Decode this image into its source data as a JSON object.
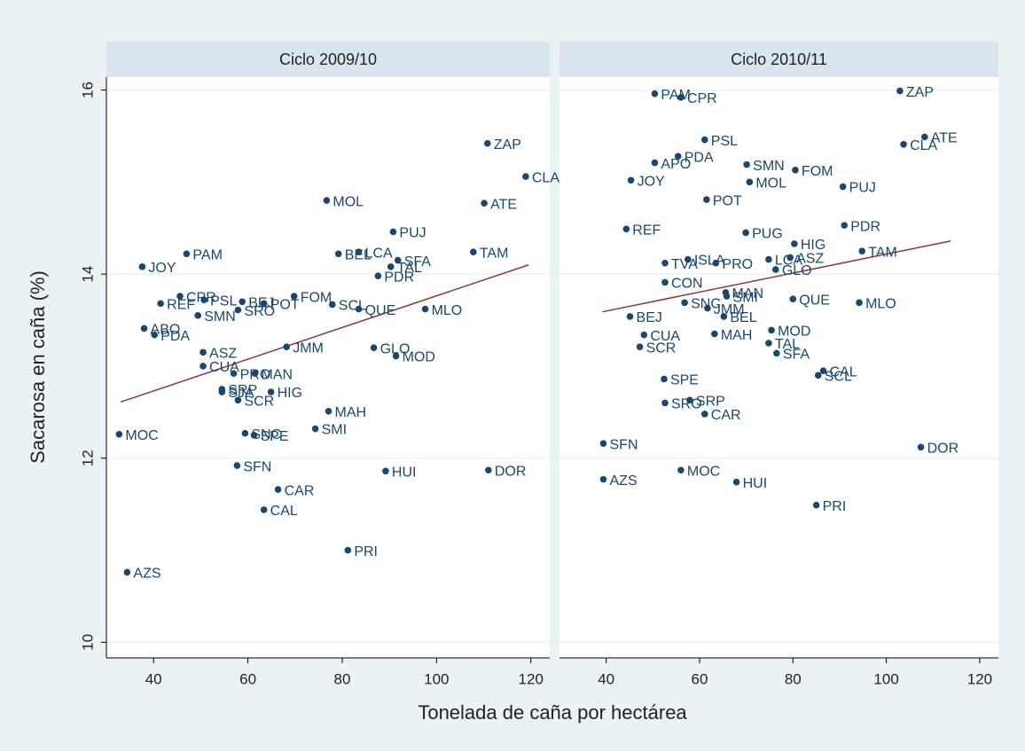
{
  "chart_data": [
    {
      "type": "scatter",
      "title": "Ciclo 2009/10",
      "x_label": "Tonelada de caña por hectárea",
      "y_label": "Sacarosa en caña (%)",
      "labels": [
        "ZAP",
        "CLA",
        "MOL",
        "ATE",
        "PUJ",
        "PAM",
        "TAM",
        "BEL",
        "LCA",
        "SFA",
        "TAL",
        "JOY",
        "PDR",
        "CPR",
        "REF",
        "PSL",
        "BEJ",
        "POT",
        "FOM",
        "SCL",
        "QUE",
        "MLO",
        "SRO",
        "SMN",
        "ABO",
        "PDA",
        "JMM",
        "GLO",
        "ASZ",
        "MOD",
        "CUA",
        "PRO",
        "MAN",
        "SRP",
        "SJA",
        "HIG",
        "SCR",
        "MOC",
        "SNC",
        "SPE",
        "MAH",
        "SMI",
        "SFN",
        "HUI",
        "DOR",
        "CAR",
        "CAL",
        "PRI",
        "AZS"
      ],
      "x": [
        110.8,
        118.9,
        76.7,
        110.1,
        90.8,
        47.0,
        107.8,
        79.2,
        83.5,
        91.8,
        90.3,
        37.6,
        87.6,
        45.6,
        41.5,
        50.7,
        58.8,
        63.4,
        69.8,
        77.9,
        83.5,
        97.6,
        57.9,
        49.4,
        38.0,
        40.2,
        68.2,
        86.7,
        50.5,
        91.4,
        50.5,
        57.0,
        61.5,
        54.5,
        54.5,
        64.9,
        57.9,
        32.7,
        59.4,
        61.3,
        77.1,
        74.3,
        57.7,
        89.2,
        111.0,
        66.4,
        63.4,
        81.2,
        34.4
      ],
      "y": [
        15.42,
        15.06,
        14.8,
        14.77,
        14.46,
        14.22,
        14.24,
        14.22,
        14.24,
        14.15,
        14.08,
        14.08,
        13.98,
        13.76,
        13.68,
        13.72,
        13.7,
        13.68,
        13.76,
        13.67,
        13.62,
        13.62,
        13.61,
        13.55,
        13.41,
        13.34,
        13.21,
        13.2,
        13.15,
        13.11,
        13.0,
        12.92,
        12.92,
        12.75,
        12.72,
        12.72,
        12.63,
        12.26,
        12.27,
        12.25,
        12.51,
        12.32,
        11.92,
        11.86,
        11.87,
        11.66,
        11.44,
        11.0,
        10.76
      ],
      "color": "#1a476f",
      "fit": {
        "x": [
          33,
          119.5
        ],
        "y": [
          12.61,
          14.1
        ],
        "color": "#90353b"
      },
      "xlim": [
        30,
        124
      ],
      "ylim": [
        9.83,
        16.14
      ],
      "xticks": [
        40,
        60,
        80,
        100,
        120
      ],
      "yticks": [
        10,
        12,
        14,
        16
      ],
      "grid": true
    },
    {
      "type": "scatter",
      "title": "Ciclo 2010/11",
      "labels": [
        "PAM",
        "CPR",
        "ZAP",
        "PSL",
        "ATE",
        "CLA",
        "PDA",
        "APO",
        "SMN",
        "FOM",
        "JOY",
        "MOL",
        "PUJ",
        "POT",
        "REF",
        "PDR",
        "PUG",
        "HIG",
        "TAM",
        "ISLA",
        "TVA",
        "PRO",
        "LCA",
        "ASZ",
        "GLO",
        "CON",
        "MAN",
        "SMI",
        "QUE",
        "MLO",
        "SNC",
        "JMM",
        "BEJ",
        "BEL",
        "MOD",
        "CUA",
        "MAH",
        "TAL",
        "SCR",
        "SFA",
        "SPE",
        "CAL",
        "SCL",
        "SRP",
        "SRO",
        "CAR",
        "SFN",
        "DOR",
        "MOC",
        "AZS",
        "HUI",
        "PRI"
      ],
      "x": [
        50.4,
        56.0,
        102.9,
        61.1,
        108.2,
        103.7,
        55.4,
        50.4,
        70.1,
        80.5,
        45.3,
        70.7,
        90.7,
        61.5,
        44.3,
        91.0,
        69.9,
        80.3,
        94.8,
        57.5,
        52.6,
        63.5,
        74.8,
        79.4,
        76.3,
        52.6,
        65.6,
        65.8,
        80.0,
        94.2,
        56.8,
        61.7,
        45.1,
        65.2,
        75.4,
        48.1,
        63.2,
        74.8,
        47.2,
        76.5,
        52.4,
        86.5,
        85.4,
        57.9,
        52.6,
        61.1,
        39.4,
        107.4,
        56.0,
        39.4,
        67.9,
        85.0
      ],
      "y": [
        15.96,
        15.92,
        15.99,
        15.46,
        15.49,
        15.41,
        15.28,
        15.21,
        15.19,
        15.13,
        15.02,
        15.0,
        14.95,
        14.81,
        14.49,
        14.53,
        14.45,
        14.33,
        14.25,
        14.16,
        14.12,
        14.12,
        14.16,
        14.18,
        14.05,
        13.91,
        13.8,
        13.76,
        13.73,
        13.69,
        13.69,
        13.63,
        13.54,
        13.54,
        13.39,
        13.34,
        13.35,
        13.25,
        13.21,
        13.14,
        12.86,
        12.95,
        12.9,
        12.63,
        12.6,
        12.48,
        12.16,
        12.12,
        11.87,
        11.77,
        11.74,
        11.49
      ],
      "color": "#1a476f",
      "fit": {
        "x": [
          39.2,
          113.8
        ],
        "y": [
          13.59,
          14.36
        ],
        "color": "#90353b"
      },
      "xlim": [
        30,
        124
      ],
      "ylim": [
        9.83,
        16.14
      ],
      "xticks": [
        40,
        60,
        80,
        100,
        120
      ],
      "grid": true
    }
  ]
}
